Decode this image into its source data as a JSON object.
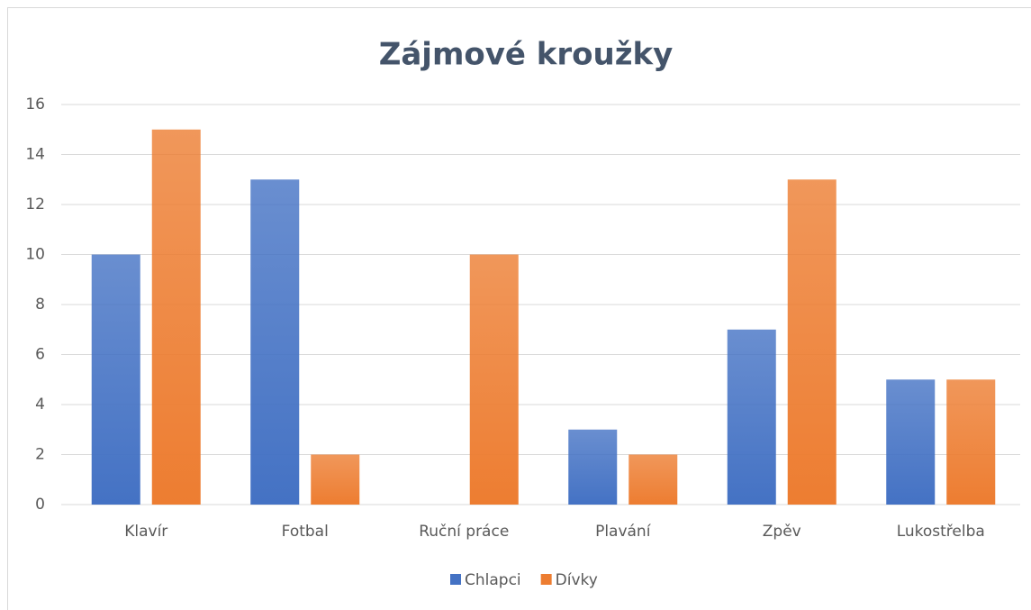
{
  "chart_data": {
    "type": "bar",
    "title": "Zájmové kroužky",
    "categories": [
      "Klavír",
      "Fotbal",
      "Ruční práce",
      "Plavání",
      "Zpěv",
      "Lukostřelba"
    ],
    "series": [
      {
        "name": "Chlapci",
        "color": "#4472c4",
        "values": [
          10,
          13,
          0,
          3,
          7,
          5
        ]
      },
      {
        "name": "Dívky",
        "color": "#ed7d31",
        "values": [
          15,
          2,
          10,
          2,
          13,
          5
        ]
      }
    ],
    "ylim": [
      0,
      16
    ],
    "yticks": [
      0,
      2,
      4,
      6,
      8,
      10,
      12,
      14,
      16
    ],
    "grid": true,
    "legend": "bottom"
  }
}
